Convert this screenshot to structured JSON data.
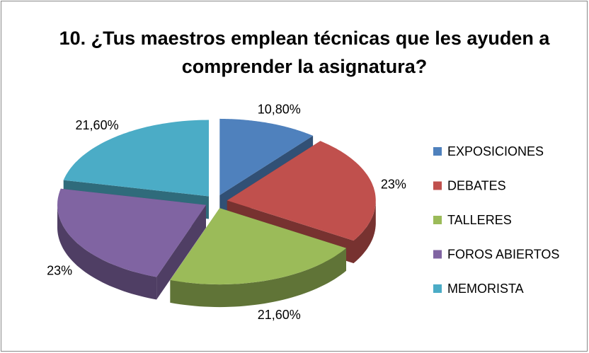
{
  "chart_data": {
    "type": "pie3d",
    "title": "10. ¿Tus maestros emplean técnicas que les ayuden a comprender la asignatura?",
    "categories": [
      "EXPOSICIONES",
      "DEBATES",
      "TALLERES",
      "FOROS ABIERTOS",
      "MEMORISTA"
    ],
    "values": [
      10.8,
      23,
      21.6,
      23,
      21.6
    ],
    "value_labels": [
      "10,80%",
      "23%",
      "21,60%",
      "23%",
      "21,60%"
    ],
    "colors": [
      "#4f81bd",
      "#c0504d",
      "#9bbb59",
      "#8064a2",
      "#4bacc6"
    ],
    "legend": "right"
  }
}
